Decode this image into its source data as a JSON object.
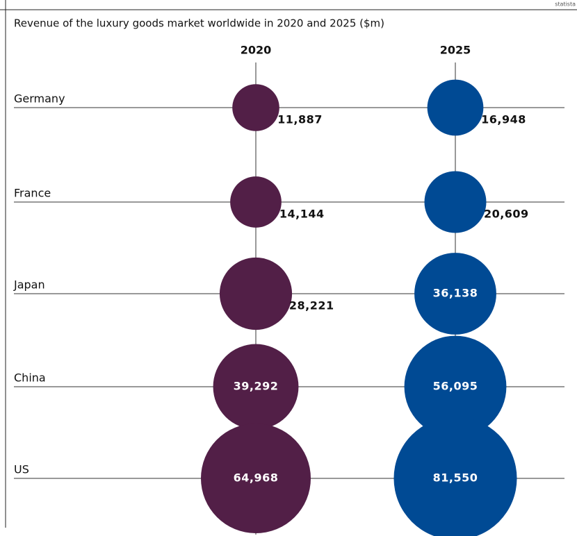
{
  "chart_data": {
    "type": "bubble",
    "title": "Revenue of the luxury goods market worldwide in 2020 and 2025 ($m)",
    "source": "statista",
    "categories": [
      "Germany",
      "France",
      "Japan",
      "China",
      "US"
    ],
    "series": [
      {
        "name": "2020",
        "color": "#521f47",
        "values": [
          11887,
          14144,
          28221,
          39292,
          64968
        ],
        "value_labels": [
          "11,887",
          "14,144",
          "28,221",
          "39,292",
          "64,968"
        ]
      },
      {
        "name": "2025",
        "color": "#004a94",
        "values": [
          16948,
          20609,
          36138,
          56095,
          81550
        ],
        "value_labels": [
          "16,948",
          "20,609",
          "36,138",
          "56,095",
          "81,550"
        ]
      }
    ]
  }
}
